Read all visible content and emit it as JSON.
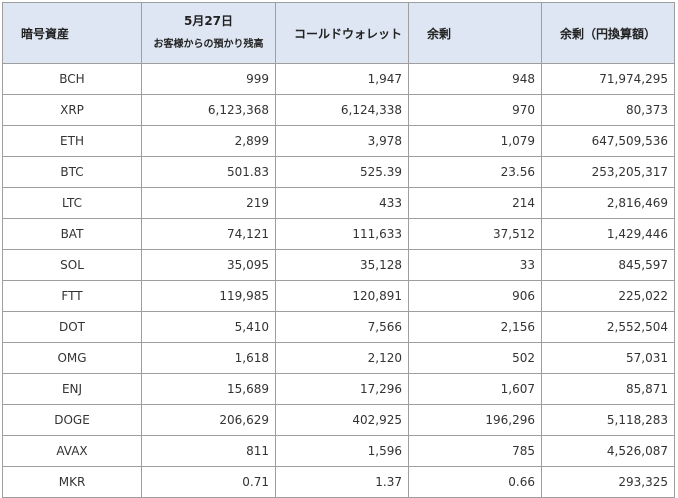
{
  "table": {
    "headers": {
      "asset": "暗号資産",
      "date": "5月27日",
      "customer": "お客様からの預かり残高",
      "cold": "コールドウォレット",
      "surplus": "余剰",
      "surplus_jpy": "余剰（円換算額）"
    },
    "rows": [
      {
        "asset": "BCH",
        "customer": "999",
        "cold": "1,947",
        "surplus": "948",
        "surplus_jpy": "71,974,295"
      },
      {
        "asset": "XRP",
        "customer": "6,123,368",
        "cold": "6,124,338",
        "surplus": "970",
        "surplus_jpy": "80,373"
      },
      {
        "asset": "ETH",
        "customer": "2,899",
        "cold": "3,978",
        "surplus": "1,079",
        "surplus_jpy": "647,509,536"
      },
      {
        "asset": "BTC",
        "customer": "501.83",
        "cold": "525.39",
        "surplus": "23.56",
        "surplus_jpy": "253,205,317"
      },
      {
        "asset": "LTC",
        "customer": "219",
        "cold": "433",
        "surplus": "214",
        "surplus_jpy": "2,816,469"
      },
      {
        "asset": "BAT",
        "customer": "74,121",
        "cold": "111,633",
        "surplus": "37,512",
        "surplus_jpy": "1,429,446"
      },
      {
        "asset": "SOL",
        "customer": "35,095",
        "cold": "35,128",
        "surplus": "33",
        "surplus_jpy": "845,597"
      },
      {
        "asset": "FTT",
        "customer": "119,985",
        "cold": "120,891",
        "surplus": "906",
        "surplus_jpy": "225,022"
      },
      {
        "asset": "DOT",
        "customer": "5,410",
        "cold": "7,566",
        "surplus": "2,156",
        "surplus_jpy": "2,552,504"
      },
      {
        "asset": "OMG",
        "customer": "1,618",
        "cold": "2,120",
        "surplus": "502",
        "surplus_jpy": "57,031"
      },
      {
        "asset": "ENJ",
        "customer": "15,689",
        "cold": "17,296",
        "surplus": "1,607",
        "surplus_jpy": "85,871"
      },
      {
        "asset": "DOGE",
        "customer": "206,629",
        "cold": "402,925",
        "surplus": "196,296",
        "surplus_jpy": "5,118,283"
      },
      {
        "asset": "AVAX",
        "customer": "811",
        "cold": "1,596",
        "surplus": "785",
        "surplus_jpy": "4,526,087"
      },
      {
        "asset": "MKR",
        "customer": "0.71",
        "cold": "1.37",
        "surplus": "0.66",
        "surplus_jpy": "293,325"
      }
    ]
  },
  "colors": {
    "header_bg": "#dde6f2",
    "border": "#9e9e9e",
    "text": "#333333"
  }
}
